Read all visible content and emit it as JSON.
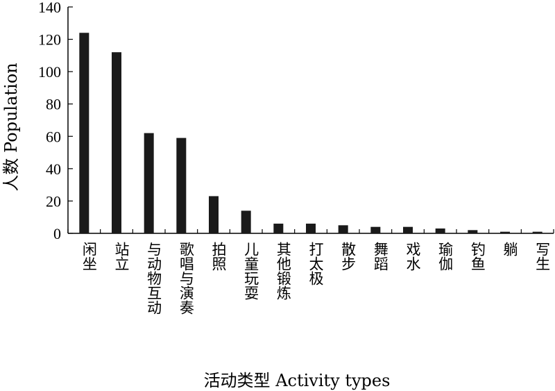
{
  "chart_data": {
    "type": "bar",
    "categories": [
      "闲坐",
      "站立",
      "与动物互动",
      "歌唱与演奏",
      "拍照",
      "儿童玩耍",
      "其他锻炼",
      "打太极",
      "散步",
      "舞蹈",
      "戏水",
      "瑜伽",
      "钓鱼",
      "躺",
      "写生"
    ],
    "values": [
      124,
      112,
      62,
      59,
      23,
      14,
      6,
      6,
      5,
      4,
      4,
      3,
      2,
      1,
      1
    ],
    "xlabel": "活动类型 Activity types",
    "ylabel": "人数 Population",
    "ylim": [
      0,
      140
    ],
    "yticks": [
      0,
      20,
      40,
      60,
      80,
      100,
      120,
      140
    ],
    "grid": false,
    "legend": "none",
    "bar_color": "#1a1a1a"
  }
}
